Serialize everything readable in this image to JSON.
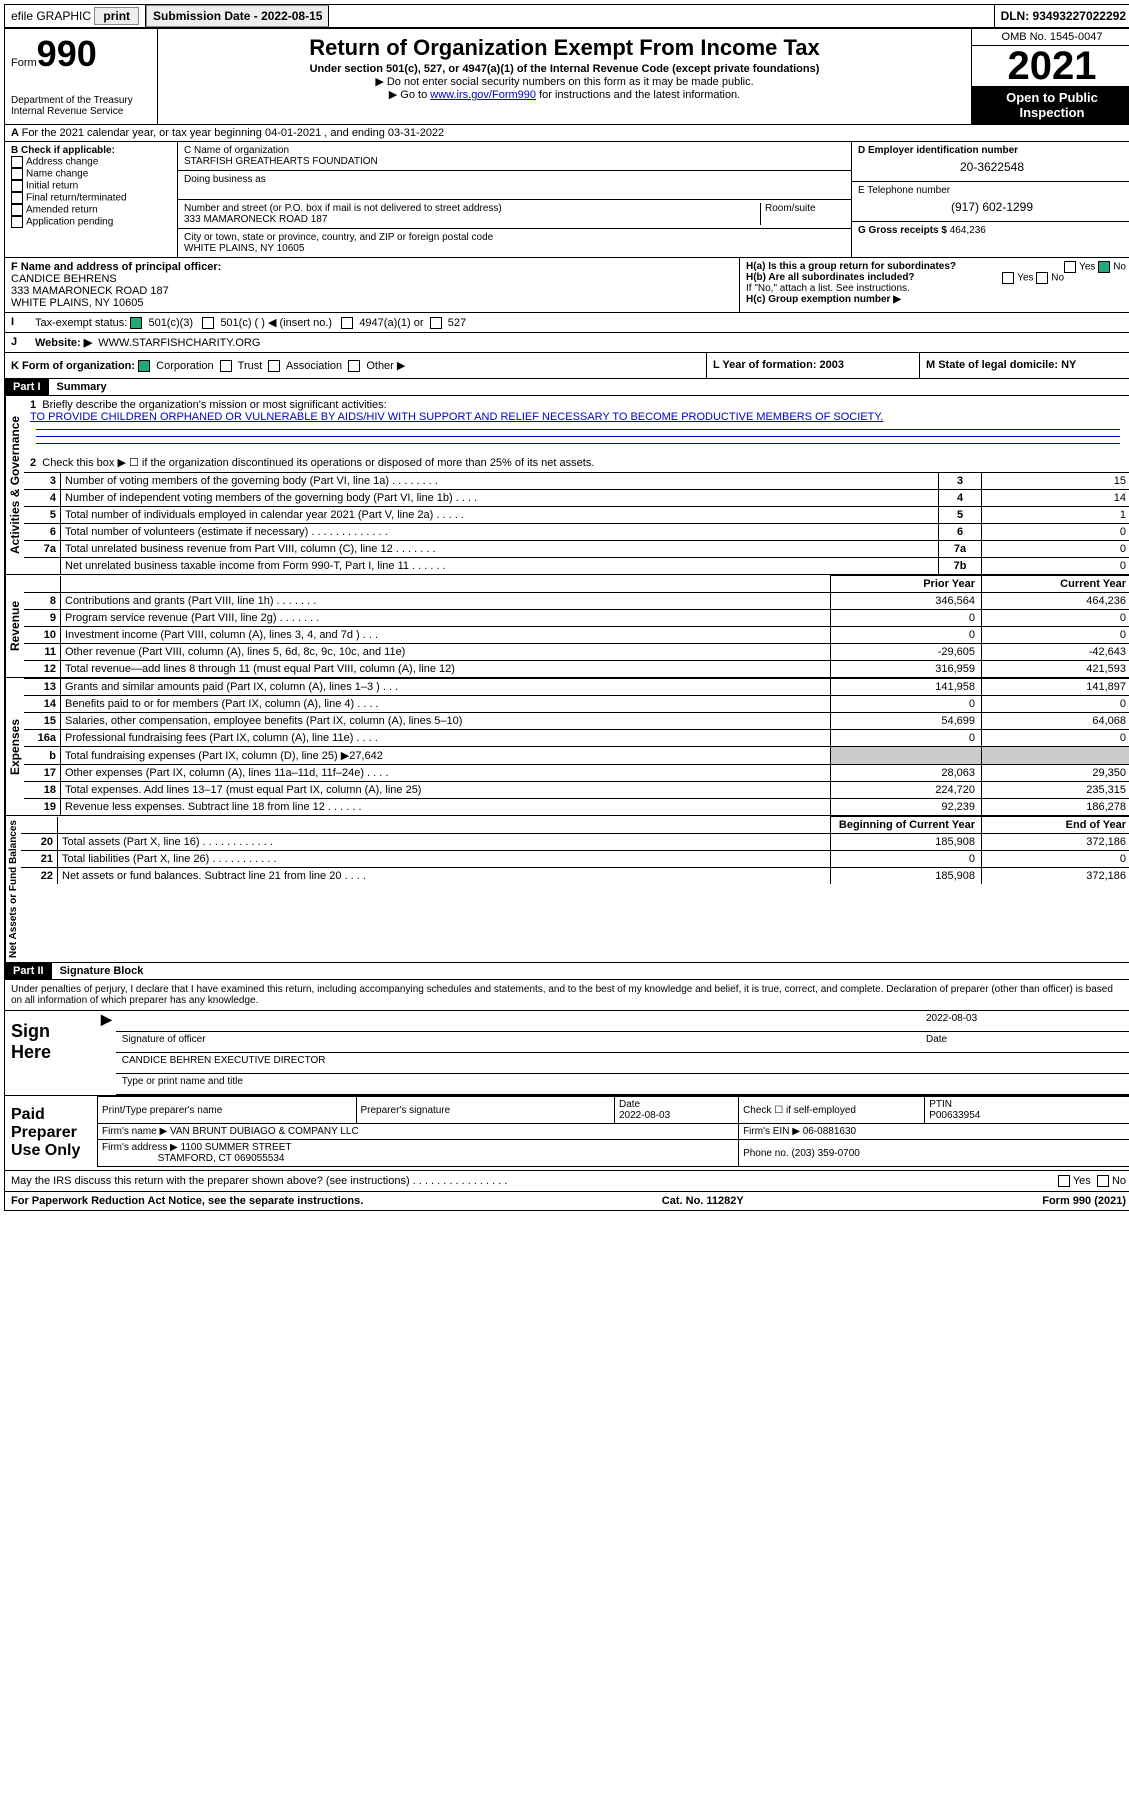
{
  "topbar": {
    "efile": "efile GRAPHIC",
    "print": "print",
    "submission_label": "Submission Date - 2022-08-15",
    "dln": "DLN: 93493227022292"
  },
  "header": {
    "form_word": "Form",
    "form_num": "990",
    "title": "Return of Organization Exempt From Income Tax",
    "subtitle": "Under section 501(c), 527, or 4947(a)(1) of the Internal Revenue Code (except private foundations)",
    "note1": "▶ Do not enter social security numbers on this form as it may be made public.",
    "note2_pre": "▶ Go to ",
    "note2_link": "www.irs.gov/Form990",
    "note2_post": " for instructions and the latest information.",
    "dept": "Department of the Treasury\nInternal Revenue Service",
    "omb": "OMB No. 1545-0047",
    "year": "2021",
    "inspection": "Open to Public Inspection"
  },
  "lineA": "For the 2021 calendar year, or tax year beginning 04-01-2021    , and ending 03-31-2022",
  "boxB": {
    "label": "B Check if applicable:",
    "opts": [
      "Address change",
      "Name change",
      "Initial return",
      "Final return/terminated",
      "Amended return",
      "Application pending"
    ]
  },
  "boxC": {
    "name_label": "C Name of organization",
    "name": "STARFISH GREATHEARTS FOUNDATION",
    "dba_label": "Doing business as",
    "addr_label": "Number and street (or P.O. box if mail is not delivered to street address)",
    "room_label": "Room/suite",
    "addr": "333 MAMARONECK ROAD 187",
    "city_label": "City or town, state or province, country, and ZIP or foreign postal code",
    "city": "WHITE PLAINS, NY  10605"
  },
  "boxD": {
    "label": "D Employer identification number",
    "value": "20-3622548"
  },
  "boxE": {
    "label": "E Telephone number",
    "value": "(917) 602-1299"
  },
  "boxG": {
    "label": "G Gross receipts $",
    "value": "464,236"
  },
  "boxF": {
    "label": "F Name and address of principal officer:",
    "name": "CANDICE BEHRENS",
    "addr1": "333 MAMARONECK ROAD 187",
    "addr2": "WHITE PLAINS, NY  10605"
  },
  "boxH": {
    "a": "H(a)  Is this a group return for subordinates?",
    "b": "H(b)  Are all subordinates included?",
    "b_note": "If \"No,\" attach a list. See instructions.",
    "c": "H(c)  Group exemption number ▶",
    "yes": "Yes",
    "no": "No"
  },
  "boxI": {
    "label": "Tax-exempt status:",
    "o1": "501(c)(3)",
    "o2": "501(c) (  ) ◀ (insert no.)",
    "o3": "4947(a)(1) or",
    "o4": "527"
  },
  "boxJ": {
    "label": "Website: ▶",
    "value": "WWW.STARFISHCHARITY.ORG"
  },
  "boxK": {
    "label": "K Form of organization:",
    "o1": "Corporation",
    "o2": "Trust",
    "o3": "Association",
    "o4": "Other ▶"
  },
  "boxL": {
    "label": "L Year of formation: 2003"
  },
  "boxM": {
    "label": "M State of legal domicile: NY"
  },
  "part1": {
    "header": "Part I",
    "title": "Summary",
    "q1": "Briefly describe the organization's mission or most significant activities:",
    "mission": "TO PROVIDE CHILDREN ORPHANED OR VULNERABLE BY AIDS/HIV WITH SUPPORT AND RELIEF NECESSARY TO BECOME PRODUCTIVE MEMBERS OF SOCIETY.",
    "q2": "Check this box ▶ ☐ if the organization discontinued its operations or disposed of more than 25% of its net assets.",
    "activities_label": "Activities & Governance",
    "revenue_label": "Revenue",
    "expenses_label": "Expenses",
    "netassets_label": "Net Assets or Fund Balances",
    "prior_year": "Prior Year",
    "current_year": "Current Year",
    "begin_year": "Beginning of Current Year",
    "end_year": "End of Year"
  },
  "lines_gov": [
    {
      "n": "3",
      "t": "Number of voting members of the governing body (Part VI, line 1a)  .  .  .  .  .  .  .  .",
      "box": "3",
      "v": "15"
    },
    {
      "n": "4",
      "t": "Number of independent voting members of the governing body (Part VI, line 1b)  .  .  .  .",
      "box": "4",
      "v": "14"
    },
    {
      "n": "5",
      "t": "Total number of individuals employed in calendar year 2021 (Part V, line 2a)  .  .  .  .  .",
      "box": "5",
      "v": "1"
    },
    {
      "n": "6",
      "t": "Total number of volunteers (estimate if necessary)  .  .  .  .  .  .  .  .  .  .  .  .  .",
      "box": "6",
      "v": "0"
    },
    {
      "n": "7a",
      "t": "Total unrelated business revenue from Part VIII, column (C), line 12  .  .  .  .  .  .  .",
      "box": "7a",
      "v": "0"
    },
    {
      "n": "",
      "t": "Net unrelated business taxable income from Form 990-T, Part I, line 11  .  .  .  .  .  .",
      "box": "7b",
      "v": "0"
    }
  ],
  "lines_rev": [
    {
      "n": "8",
      "t": "Contributions and grants (Part VIII, line 1h)  .  .  .  .  .  .  .",
      "p": "346,564",
      "c": "464,236"
    },
    {
      "n": "9",
      "t": "Program service revenue (Part VIII, line 2g)  .  .  .  .  .  .  .",
      "p": "0",
      "c": "0"
    },
    {
      "n": "10",
      "t": "Investment income (Part VIII, column (A), lines 3, 4, and 7d )  .  .  .",
      "p": "0",
      "c": "0"
    },
    {
      "n": "11",
      "t": "Other revenue (Part VIII, column (A), lines 5, 6d, 8c, 9c, 10c, and 11e)",
      "p": "-29,605",
      "c": "-42,643"
    },
    {
      "n": "12",
      "t": "Total revenue—add lines 8 through 11 (must equal Part VIII, column (A), line 12)",
      "p": "316,959",
      "c": "421,593"
    }
  ],
  "lines_exp": [
    {
      "n": "13",
      "t": "Grants and similar amounts paid (Part IX, column (A), lines 1–3 )  .  .  .",
      "p": "141,958",
      "c": "141,897"
    },
    {
      "n": "14",
      "t": "Benefits paid to or for members (Part IX, column (A), line 4)  .  .  .  .",
      "p": "0",
      "c": "0"
    },
    {
      "n": "15",
      "t": "Salaries, other compensation, employee benefits (Part IX, column (A), lines 5–10)",
      "p": "54,699",
      "c": "64,068"
    },
    {
      "n": "16a",
      "t": "Professional fundraising fees (Part IX, column (A), line 11e)  .  .  .  .",
      "p": "0",
      "c": "0"
    },
    {
      "n": "b",
      "t": "Total fundraising expenses (Part IX, column (D), line 25) ▶27,642",
      "p": "",
      "c": "",
      "shade": true
    },
    {
      "n": "17",
      "t": "Other expenses (Part IX, column (A), lines 11a–11d, 11f–24e)  .  .  .  .",
      "p": "28,063",
      "c": "29,350"
    },
    {
      "n": "18",
      "t": "Total expenses. Add lines 13–17 (must equal Part IX, column (A), line 25)",
      "p": "224,720",
      "c": "235,315"
    },
    {
      "n": "19",
      "t": "Revenue less expenses. Subtract line 18 from line 12  .  .  .  .  .  .",
      "p": "92,239",
      "c": "186,278"
    }
  ],
  "lines_net": [
    {
      "n": "20",
      "t": "Total assets (Part X, line 16)  .  .  .  .  .  .  .  .  .  .  .  .",
      "p": "185,908",
      "c": "372,186"
    },
    {
      "n": "21",
      "t": "Total liabilities (Part X, line 26)  .  .  .  .  .  .  .  .  .  .  .",
      "p": "0",
      "c": "0"
    },
    {
      "n": "22",
      "t": "Net assets or fund balances. Subtract line 21 from line 20  .  .  .  .",
      "p": "185,908",
      "c": "372,186"
    }
  ],
  "part2": {
    "header": "Part II",
    "title": "Signature Block",
    "perjury": "Under penalties of perjury, I declare that I have examined this return, including accompanying schedules and statements, and to the best of my knowledge and belief, it is true, correct, and complete. Declaration of preparer (other than officer) is based on all information of which preparer has any knowledge.",
    "sign_here": "Sign Here",
    "sig_officer": "Signature of officer",
    "date": "Date",
    "sig_date": "2022-08-03",
    "officer_name": "CANDICE BEHREN  EXECUTIVE DIRECTOR",
    "type_name": "Type or print name and title",
    "paid_label": "Paid Preparer Use Only",
    "prep_name_label": "Print/Type preparer's name",
    "prep_sig_label": "Preparer's signature",
    "prep_date_label": "Date",
    "prep_date": "2022-08-03",
    "self_emp": "Check ☐ if self-employed",
    "ptin_label": "PTIN",
    "ptin": "P00633954",
    "firm_name_label": "Firm's name    ▶",
    "firm_name": "VAN BRUNT DUBIAGO & COMPANY LLC",
    "firm_ein_label": "Firm's EIN ▶",
    "firm_ein": "06-0881630",
    "firm_addr_label": "Firm's address ▶",
    "firm_addr1": "1100 SUMMER STREET",
    "firm_addr2": "STAMFORD, CT  069055534",
    "phone_label": "Phone no.",
    "phone": "(203) 359-0700",
    "discuss": "May the IRS discuss this return with the preparer shown above? (see instructions)  .  .  .  .  .  .  .  .  .  .  .  .  .  .  .  .",
    "yes": "Yes",
    "no": "No"
  },
  "footer": {
    "left": "For Paperwork Reduction Act Notice, see the separate instructions.",
    "mid": "Cat. No. 11282Y",
    "right": "Form 990 (2021)"
  }
}
